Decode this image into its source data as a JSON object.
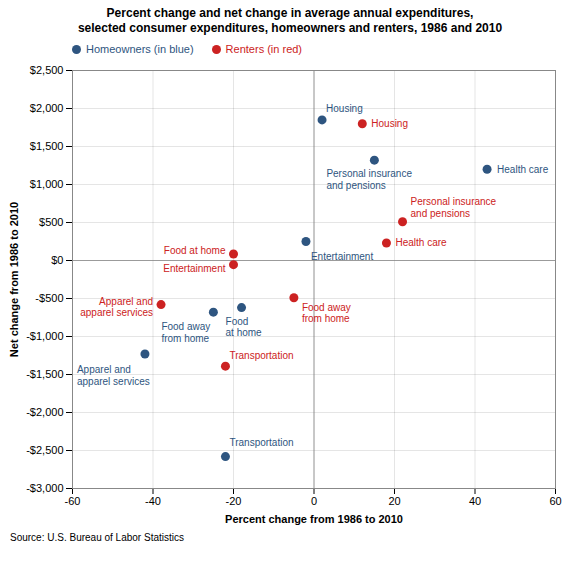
{
  "chart_data": {
    "type": "scatter",
    "title": "Percent change and net change in average annual expenditures,\nselected consumer expenditures, homeowners and renters, 1986 and 2010",
    "xlabel": "Percent change from 1986 to 2010",
    "ylabel": "Net change from 1986 to 2010",
    "caption": "Source: U.S. Bureau of Labor Statistics",
    "xlim": [
      -60,
      60
    ],
    "ylim": [
      -3000,
      2500
    ],
    "xticks": [
      -60,
      -40,
      -20,
      0,
      20,
      40,
      60
    ],
    "yticks": [
      {
        "value": -3000,
        "label": "-$3,000"
      },
      {
        "value": -2500,
        "label": "-$2,500"
      },
      {
        "value": -2000,
        "label": "-$2,000"
      },
      {
        "value": -1500,
        "label": "-$1,500"
      },
      {
        "value": -1000,
        "label": "-$1,000"
      },
      {
        "value": -500,
        "label": "-$500"
      },
      {
        "value": 0,
        "label": "$0"
      },
      {
        "value": 500,
        "label": "$500"
      },
      {
        "value": 1000,
        "label": "$1,000"
      },
      {
        "value": 1500,
        "label": "$1,500"
      },
      {
        "value": 2000,
        "label": "$2,000"
      },
      {
        "value": 2500,
        "label": "$2,500"
      }
    ],
    "grid": true,
    "series": [
      {
        "name": "Homeowners (in blue)",
        "color": "#2E5580",
        "x": [
          2,
          43,
          15,
          -2,
          -18,
          -25,
          -42,
          -22
        ],
        "values": [
          1850,
          1200,
          1320,
          250,
          -620,
          -680,
          -1230,
          -2580
        ],
        "labels": [
          "Housing",
          "Health care",
          "Personal insurance\nand pensions",
          "Entertainment",
          "Food\nat home",
          "Food away\nfrom home",
          "Apparel and\napparel services",
          "Transportation"
        ]
      },
      {
        "name": "Renters (in red)",
        "color": "#CC2222",
        "x": [
          12,
          18,
          22,
          -20,
          -20,
          -5,
          -38,
          -22
        ],
        "values": [
          1800,
          230,
          510,
          -55,
          85,
          -490,
          -580,
          -1390
        ],
        "labels": [
          "Housing",
          "Health care",
          "Personal insurance\nand pensions",
          "Entertainment",
          "Food at home",
          "Food away\nfrom home",
          "Apparel and\napparel services",
          "Transportation"
        ]
      }
    ]
  }
}
